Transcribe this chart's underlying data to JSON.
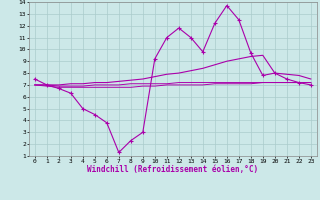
{
  "xlabel": "Windchill (Refroidissement éolien,°C)",
  "xlim": [
    -0.5,
    23.5
  ],
  "ylim": [
    1,
    14
  ],
  "xticks": [
    0,
    1,
    2,
    3,
    4,
    5,
    6,
    7,
    8,
    9,
    10,
    11,
    12,
    13,
    14,
    15,
    16,
    17,
    18,
    19,
    20,
    21,
    22,
    23
  ],
  "yticks": [
    1,
    2,
    3,
    4,
    5,
    6,
    7,
    8,
    9,
    10,
    11,
    12,
    13,
    14
  ],
  "background_color": "#cce8e8",
  "line_color": "#aa00aa",
  "grid_color": "#aacccc",
  "line1_x": [
    0,
    1,
    2,
    3,
    4,
    5,
    6,
    7,
    8,
    9,
    10,
    11,
    12,
    13,
    14,
    15,
    16,
    17,
    18,
    19,
    20,
    21,
    22,
    23
  ],
  "line1_y": [
    7.5,
    7.0,
    6.7,
    6.3,
    5.0,
    4.5,
    3.8,
    1.3,
    2.3,
    3.0,
    9.2,
    11.0,
    11.8,
    11.0,
    9.8,
    12.2,
    13.7,
    12.5,
    9.7,
    7.8,
    8.0,
    7.5,
    7.2,
    7.0
  ],
  "line2_x": [
    0,
    1,
    2,
    3,
    4,
    5,
    6,
    7,
    8,
    9,
    10,
    11,
    12,
    13,
    14,
    15,
    16,
    17,
    18,
    19,
    20,
    21,
    22,
    23
  ],
  "line2_y": [
    7.0,
    7.0,
    7.0,
    7.1,
    7.1,
    7.2,
    7.2,
    7.3,
    7.4,
    7.5,
    7.7,
    7.9,
    8.0,
    8.2,
    8.4,
    8.7,
    9.0,
    9.2,
    9.4,
    9.5,
    8.0,
    7.9,
    7.8,
    7.5
  ],
  "line3_x": [
    0,
    1,
    2,
    3,
    4,
    5,
    6,
    7,
    8,
    9,
    10,
    11,
    12,
    13,
    14,
    15,
    16,
    17,
    18,
    19,
    20,
    21,
    22,
    23
  ],
  "line3_y": [
    7.0,
    6.9,
    6.8,
    6.8,
    6.8,
    6.8,
    6.8,
    6.8,
    6.8,
    6.9,
    6.9,
    7.0,
    7.0,
    7.0,
    7.0,
    7.1,
    7.1,
    7.1,
    7.1,
    7.2,
    7.2,
    7.2,
    7.2,
    7.2
  ],
  "line4_x": [
    0,
    1,
    2,
    3,
    4,
    5,
    6,
    7,
    8,
    9,
    10,
    11,
    12,
    13,
    14,
    15,
    16,
    17,
    18,
    19,
    20,
    21,
    22,
    23
  ],
  "line4_y": [
    7.0,
    7.0,
    6.9,
    6.9,
    6.9,
    7.0,
    7.0,
    7.0,
    7.1,
    7.1,
    7.1,
    7.1,
    7.2,
    7.2,
    7.2,
    7.2,
    7.2,
    7.2,
    7.2,
    7.2,
    7.2,
    7.2,
    7.2,
    7.2
  ]
}
